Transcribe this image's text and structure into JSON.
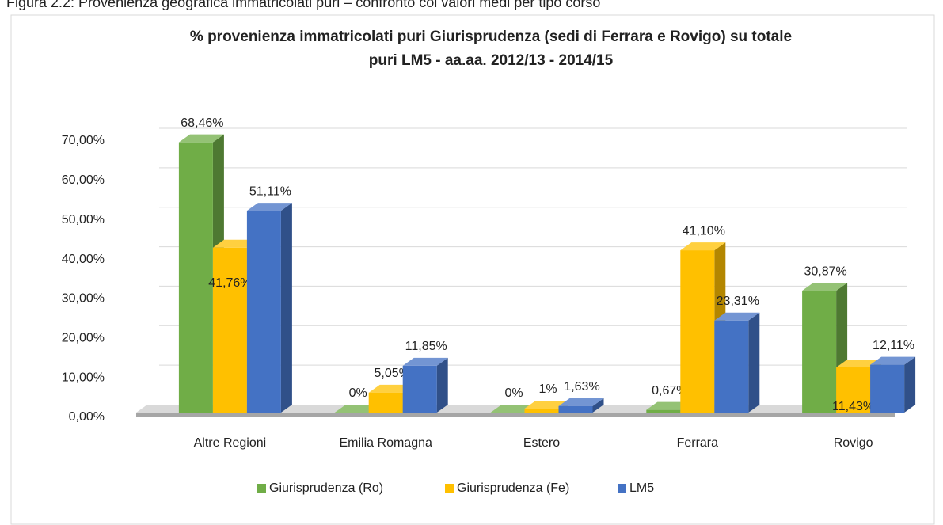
{
  "caption": "Figura 2.2: Provenienza geografica immatricolati puri – confronto coi valori medi per tipo corso",
  "chart_data": {
    "type": "bar3d",
    "title": [
      "% provenienza immatricolati puri Giurisprudenza (sedi di Ferrara e Rovigo) su totale",
      "puri LM5 - aa.aa. 2012/13 - 2014/15"
    ],
    "categories": [
      "Altre Regioni",
      "Emilia Romagna",
      "Estero",
      "Ferrara",
      "Rovigo"
    ],
    "series": [
      {
        "name": "Giurisprudenza (Ro)",
        "color": "#70ad47",
        "values": [
          68.46,
          0,
          0,
          0.67,
          30.87
        ],
        "value_labels": [
          "68,46%",
          "0%",
          "0%",
          "0,67%",
          "30,87%"
        ]
      },
      {
        "name": "Giurisprudenza (Fe)",
        "color": "#ffc000",
        "values": [
          41.76,
          5.05,
          1,
          41.1,
          11.43
        ],
        "value_labels": [
          "41,76%",
          "5,05%",
          "1%",
          "41,10%",
          "11,43%"
        ]
      },
      {
        "name": "LM5",
        "color": "#4472c4",
        "values": [
          51.11,
          11.85,
          1.63,
          23.31,
          12.11
        ],
        "value_labels": [
          "51,11%",
          "11,85%",
          "1,63%",
          "23,31%",
          "12,11%"
        ]
      }
    ],
    "ylim": [
      0,
      70
    ],
    "yticks": [
      {
        "value": 0,
        "label": "0,00%"
      },
      {
        "value": 10,
        "label": "10,00%"
      },
      {
        "value": 20,
        "label": "20,00%"
      },
      {
        "value": 30,
        "label": "30,00%"
      },
      {
        "value": 40,
        "label": "40,00%"
      },
      {
        "value": 50,
        "label": "50,00%"
      },
      {
        "value": 60,
        "label": "60,00%"
      },
      {
        "value": 70,
        "label": "70,00%"
      }
    ],
    "grid": true,
    "legend": "bottom"
  }
}
